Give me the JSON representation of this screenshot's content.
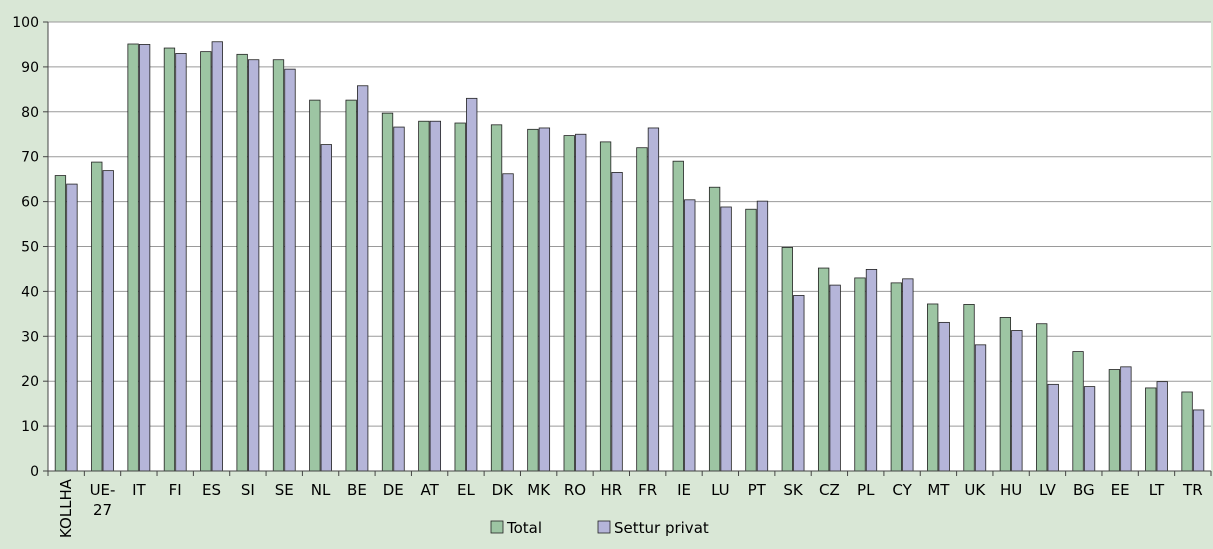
{
  "chart_data": {
    "type": "bar",
    "title": "",
    "xlabel": "",
    "ylabel": "",
    "ylim": [
      0,
      100
    ],
    "yticks": [
      0,
      10,
      20,
      30,
      40,
      50,
      60,
      70,
      80,
      90,
      100
    ],
    "grid": true,
    "legend_position": "bottom-center",
    "categories": [
      "KOLLHA",
      "UE-27",
      "IT",
      "FI",
      "ES",
      "SI",
      "SE",
      "NL",
      "BE",
      "DE",
      "AT",
      "EL",
      "DK",
      "MK",
      "RO",
      "HR",
      "FR",
      "IE",
      "LU",
      "PT",
      "SK",
      "CZ",
      "PL",
      "CY",
      "MT",
      "UK",
      "HU",
      "LV",
      "BG",
      "EE",
      "LT",
      "TR"
    ],
    "series": [
      {
        "name": "Total",
        "color": "#9dc5a3",
        "values": [
          65.8,
          68.8,
          95.1,
          94.2,
          93.4,
          92.8,
          91.6,
          82.6,
          82.6,
          79.7,
          77.9,
          77.5,
          77.1,
          76.1,
          74.7,
          73.3,
          72.0,
          69.0,
          63.2,
          58.3,
          49.8,
          45.2,
          43.0,
          41.9,
          37.2,
          37.1,
          34.2,
          32.8,
          26.6,
          22.6,
          18.5,
          17.6
        ]
      },
      {
        "name": "Settur privat",
        "color": "#b5b5d9",
        "values": [
          63.9,
          66.9,
          95.0,
          93.0,
          95.6,
          91.6,
          89.5,
          72.7,
          85.8,
          76.6,
          77.9,
          83.0,
          66.2,
          76.4,
          75.0,
          66.5,
          76.4,
          60.4,
          58.8,
          60.1,
          39.1,
          41.4,
          44.9,
          42.8,
          33.1,
          28.1,
          31.3,
          19.3,
          18.8,
          23.2,
          19.9,
          13.6
        ]
      }
    ],
    "gridline_color": "#9a9a9a",
    "axis_color": "#444444"
  }
}
